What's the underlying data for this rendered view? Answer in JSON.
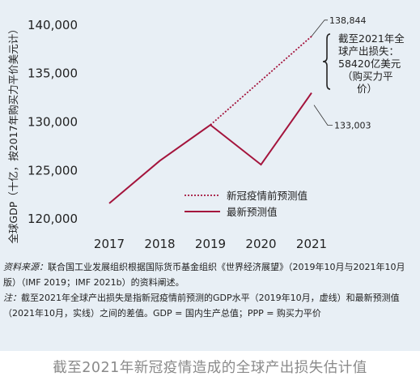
{
  "chart_data": {
    "type": "line",
    "categories": [
      "2017",
      "2018",
      "2019",
      "2020",
      "2021"
    ],
    "ylabel": "全球GDP（十亿，按2017年购买力平价美元计）",
    "yticks": [
      120000,
      125000,
      130000,
      135000,
      140000
    ],
    "ytick_labels": [
      "120,000",
      "125,000",
      "130,000",
      "135,000",
      "140,000"
    ],
    "ylim": [
      119000,
      140500
    ],
    "grid": false,
    "legend_position": "lower-right",
    "series": [
      {
        "name": "新冠疫情前预测值",
        "style": "dotted",
        "color": "#a4143c",
        "x": [
          "2019",
          "2021"
        ],
        "values": [
          129700,
          138844
        ]
      },
      {
        "name": "最新预测值",
        "style": "solid",
        "color": "#a4143c",
        "x": [
          "2017",
          "2018",
          "2019",
          "2020",
          "2021"
        ],
        "values": [
          121600,
          126000,
          129700,
          125600,
          133003
        ]
      }
    ],
    "annotations": {
      "top_value": "138,844",
      "bottom_value": "133,003",
      "gap_lines": [
        "截至2021年全",
        "球产出损失：",
        "58420亿美元",
        "（购买力平",
        "价）"
      ]
    }
  },
  "notes": {
    "source_label": "资料来源：",
    "source_text": "联合国工业发展组织根据国际货币基金组织《世界经济展望》（2019年10月与2021年10月版）（IMF 2019；IMF 2021b）的资料阐述。",
    "note_label": "注：",
    "note_text": "截至2021年全球产出损失是指新冠疫情前预测的GDP水平（2019年10月，虚线）和最新预测值（2021年10月，实线）之间的差值。GDP = 国内生产总值；PPP = 购买力平价"
  },
  "caption": "截至2021年新冠疫情造成的全球产出损失估计值"
}
